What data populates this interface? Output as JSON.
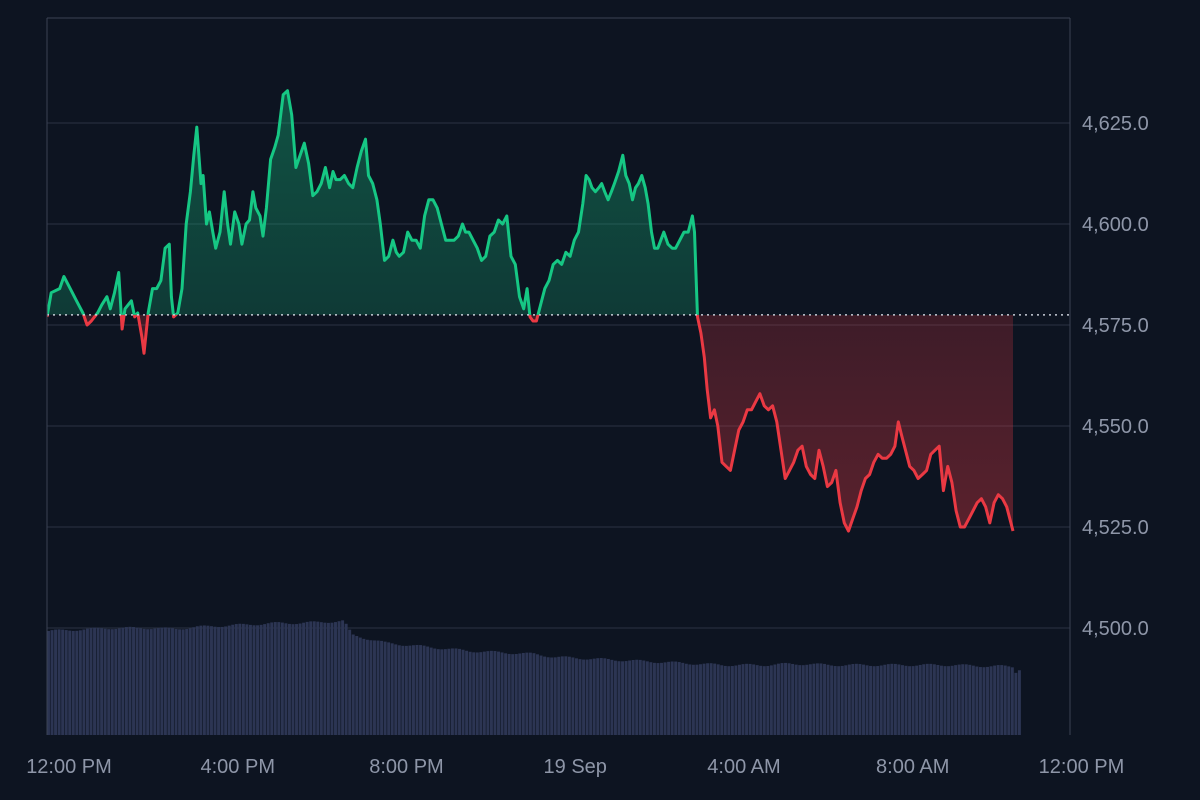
{
  "colors": {
    "background": "#0d1421",
    "grid": "#2a3242",
    "up": "#16c784",
    "down": "#ea3943",
    "baseline": "#c7ccd6",
    "volume": "#2c3553",
    "axis_text": "#8e96a8"
  },
  "chart_data": {
    "type": "area",
    "title": "",
    "xlabel": "",
    "ylabel": "",
    "baseline_value": 4577.5,
    "ylim": [
      4473.5,
      4651
    ],
    "y_ticks": [
      4500,
      4525,
      4550,
      4575,
      4600,
      4625
    ],
    "y_tick_labels": [
      "4,500.0",
      "4,525.0",
      "4,550.0",
      "4,575.0",
      "4,600.0",
      "4,625.0"
    ],
    "x_ticks": [
      {
        "h": 0,
        "label": "12:00 PM"
      },
      {
        "h": 4,
        "label": "4:00 PM"
      },
      {
        "h": 8,
        "label": "8:00 PM"
      },
      {
        "h": 12,
        "label": "19 Sep"
      },
      {
        "h": 16,
        "label": "4:00 AM"
      },
      {
        "h": 20,
        "label": "8:00 AM"
      },
      {
        "h": 24,
        "label": "12:00 PM"
      }
    ],
    "x_range_hours": [
      0,
      24.25
    ],
    "grid": true,
    "series": [
      {
        "type": "price",
        "points": [
          [
            0.0,
            4577
          ],
          [
            0.1,
            4583
          ],
          [
            0.3,
            4584
          ],
          [
            0.4,
            4587
          ],
          [
            0.55,
            4584
          ],
          [
            0.7,
            4581
          ],
          [
            0.85,
            4578
          ],
          [
            0.95,
            4575
          ],
          [
            1.05,
            4576
          ],
          [
            1.2,
            4578
          ],
          [
            1.3,
            4580
          ],
          [
            1.42,
            4582
          ],
          [
            1.5,
            4579
          ],
          [
            1.6,
            4583
          ],
          [
            1.7,
            4588
          ],
          [
            1.78,
            4574
          ],
          [
            1.85,
            4579
          ],
          [
            2.0,
            4581
          ],
          [
            2.08,
            4577
          ],
          [
            2.15,
            4578
          ],
          [
            2.25,
            4572
          ],
          [
            2.3,
            4568
          ],
          [
            2.4,
            4578
          ],
          [
            2.5,
            4584
          ],
          [
            2.6,
            4584
          ],
          [
            2.7,
            4586
          ],
          [
            2.8,
            4594
          ],
          [
            2.9,
            4595
          ],
          [
            2.95,
            4582
          ],
          [
            3.0,
            4577
          ],
          [
            3.1,
            4578
          ],
          [
            3.2,
            4584
          ],
          [
            3.3,
            4600
          ],
          [
            3.4,
            4608
          ],
          [
            3.48,
            4617
          ],
          [
            3.55,
            4624
          ],
          [
            3.65,
            4610
          ],
          [
            3.7,
            4612
          ],
          [
            3.78,
            4600
          ],
          [
            3.85,
            4603
          ],
          [
            3.93,
            4598
          ],
          [
            4.0,
            4594
          ],
          [
            4.1,
            4598
          ],
          [
            4.2,
            4608
          ],
          [
            4.28,
            4600
          ],
          [
            4.35,
            4595
          ],
          [
            4.45,
            4603
          ],
          [
            4.55,
            4600
          ],
          [
            4.62,
            4595
          ],
          [
            4.72,
            4600
          ],
          [
            4.8,
            4601
          ],
          [
            4.88,
            4608
          ],
          [
            4.95,
            4604
          ],
          [
            5.05,
            4602
          ],
          [
            5.12,
            4597
          ],
          [
            5.2,
            4604
          ],
          [
            5.3,
            4616
          ],
          [
            5.4,
            4619
          ],
          [
            5.48,
            4622
          ],
          [
            5.6,
            4632
          ],
          [
            5.7,
            4633
          ],
          [
            5.8,
            4627
          ],
          [
            5.9,
            4614
          ],
          [
            6.0,
            4617
          ],
          [
            6.1,
            4620
          ],
          [
            6.2,
            4615
          ],
          [
            6.3,
            4607
          ],
          [
            6.4,
            4608
          ],
          [
            6.5,
            4610
          ],
          [
            6.6,
            4614
          ],
          [
            6.7,
            4609
          ],
          [
            6.78,
            4613
          ],
          [
            6.85,
            4611
          ],
          [
            6.95,
            4611
          ],
          [
            7.05,
            4612
          ],
          [
            7.15,
            4610
          ],
          [
            7.25,
            4609
          ],
          [
            7.35,
            4614
          ],
          [
            7.45,
            4618
          ],
          [
            7.55,
            4621
          ],
          [
            7.62,
            4612
          ],
          [
            7.72,
            4610
          ],
          [
            7.82,
            4606
          ],
          [
            7.9,
            4600
          ],
          [
            8.0,
            4591
          ],
          [
            8.1,
            4592
          ],
          [
            8.2,
            4596
          ],
          [
            8.28,
            4593
          ],
          [
            8.35,
            4592
          ],
          [
            8.45,
            4593
          ],
          [
            8.55,
            4598
          ],
          [
            8.65,
            4596
          ],
          [
            8.75,
            4596
          ],
          [
            8.85,
            4594
          ],
          [
            8.95,
            4602
          ],
          [
            9.05,
            4606
          ],
          [
            9.15,
            4606
          ],
          [
            9.25,
            4604
          ],
          [
            9.35,
            4600
          ],
          [
            9.45,
            4596
          ],
          [
            9.55,
            4596
          ],
          [
            9.65,
            4596
          ],
          [
            9.75,
            4597
          ],
          [
            9.85,
            4600
          ],
          [
            9.92,
            4598
          ],
          [
            10.0,
            4598
          ],
          [
            10.1,
            4596
          ],
          [
            10.2,
            4594
          ],
          [
            10.3,
            4591
          ],
          [
            10.4,
            4592
          ],
          [
            10.5,
            4597
          ],
          [
            10.6,
            4598
          ],
          [
            10.7,
            4601
          ],
          [
            10.8,
            4600
          ],
          [
            10.9,
            4602
          ],
          [
            11.0,
            4592
          ],
          [
            11.1,
            4590
          ],
          [
            11.2,
            4582
          ],
          [
            11.3,
            4579
          ],
          [
            11.38,
            4584
          ],
          [
            11.45,
            4577
          ],
          [
            11.52,
            4576
          ],
          [
            11.6,
            4576
          ],
          [
            11.7,
            4580
          ],
          [
            11.8,
            4584
          ],
          [
            11.9,
            4586
          ],
          [
            12.0,
            4590
          ],
          [
            12.1,
            4591
          ],
          [
            12.2,
            4590
          ],
          [
            12.3,
            4593
          ],
          [
            12.4,
            4592
          ],
          [
            12.5,
            4596
          ],
          [
            12.6,
            4598
          ],
          [
            12.7,
            4605
          ],
          [
            12.78,
            4612
          ],
          [
            12.85,
            4611
          ],
          [
            12.92,
            4609
          ],
          [
            13.0,
            4608
          ],
          [
            13.08,
            4609
          ],
          [
            13.15,
            4610
          ],
          [
            13.22,
            4608
          ],
          [
            13.3,
            4606
          ],
          [
            13.38,
            4608
          ],
          [
            13.45,
            4610
          ],
          [
            13.55,
            4613
          ],
          [
            13.65,
            4617
          ],
          [
            13.72,
            4612
          ],
          [
            13.8,
            4610
          ],
          [
            13.88,
            4606
          ],
          [
            13.95,
            4609
          ],
          [
            14.02,
            4610
          ],
          [
            14.1,
            4612
          ],
          [
            14.18,
            4609
          ],
          [
            14.25,
            4605
          ],
          [
            14.33,
            4598
          ],
          [
            14.4,
            4594
          ],
          [
            14.48,
            4594
          ],
          [
            14.55,
            4596
          ],
          [
            14.62,
            4598
          ],
          [
            14.72,
            4595
          ],
          [
            14.82,
            4594
          ],
          [
            14.9,
            4594
          ],
          [
            15.0,
            4596
          ],
          [
            15.1,
            4598
          ],
          [
            15.2,
            4598
          ],
          [
            15.3,
            4602
          ],
          [
            15.35,
            4598
          ],
          [
            15.42,
            4577
          ],
          [
            15.5,
            4573
          ],
          [
            15.58,
            4567
          ],
          [
            15.65,
            4559
          ],
          [
            15.73,
            4552
          ],
          [
            15.82,
            4554
          ],
          [
            15.9,
            4550
          ],
          [
            16.0,
            4541
          ],
          [
            16.1,
            4540
          ],
          [
            16.2,
            4539
          ],
          [
            16.3,
            4544
          ],
          [
            16.4,
            4549
          ],
          [
            16.5,
            4551
          ],
          [
            16.6,
            4554
          ],
          [
            16.7,
            4554
          ],
          [
            16.8,
            4556
          ],
          [
            16.9,
            4558
          ],
          [
            17.0,
            4555
          ],
          [
            17.1,
            4554
          ],
          [
            17.2,
            4555
          ],
          [
            17.3,
            4551
          ],
          [
            17.4,
            4544
          ],
          [
            17.5,
            4537
          ],
          [
            17.6,
            4539
          ],
          [
            17.7,
            4541
          ],
          [
            17.8,
            4544
          ],
          [
            17.9,
            4545
          ],
          [
            18.0,
            4540
          ],
          [
            18.1,
            4538
          ],
          [
            18.2,
            4537
          ],
          [
            18.3,
            4544
          ],
          [
            18.4,
            4540
          ],
          [
            18.5,
            4535
          ],
          [
            18.6,
            4536
          ],
          [
            18.7,
            4539
          ],
          [
            18.8,
            4531
          ],
          [
            18.9,
            4526
          ],
          [
            19.0,
            4524
          ],
          [
            19.1,
            4527
          ],
          [
            19.2,
            4530
          ],
          [
            19.3,
            4534
          ],
          [
            19.4,
            4537
          ],
          [
            19.5,
            4538
          ],
          [
            19.6,
            4541
          ],
          [
            19.7,
            4543
          ],
          [
            19.8,
            4542
          ],
          [
            19.9,
            4542
          ],
          [
            20.0,
            4543
          ],
          [
            20.1,
            4545
          ],
          [
            20.18,
            4551
          ],
          [
            20.25,
            4548
          ],
          [
            20.35,
            4544
          ],
          [
            20.45,
            4540
          ],
          [
            20.55,
            4539
          ],
          [
            20.65,
            4537
          ],
          [
            20.75,
            4538
          ],
          [
            20.85,
            4539
          ],
          [
            20.95,
            4543
          ],
          [
            21.05,
            4544
          ],
          [
            21.15,
            4545
          ],
          [
            21.25,
            4534
          ],
          [
            21.35,
            4540
          ],
          [
            21.45,
            4536
          ],
          [
            21.55,
            4529
          ],
          [
            21.65,
            4525
          ],
          [
            21.75,
            4525
          ],
          [
            21.85,
            4527
          ],
          [
            21.95,
            4529
          ],
          [
            22.05,
            4531
          ],
          [
            22.15,
            4532
          ],
          [
            22.25,
            4530
          ],
          [
            22.35,
            4526
          ],
          [
            22.45,
            4531
          ],
          [
            22.55,
            4533
          ],
          [
            22.65,
            4532
          ],
          [
            22.75,
            4530
          ],
          [
            22.85,
            4526
          ],
          [
            22.9,
            4524
          ]
        ]
      },
      {
        "type": "volume",
        "points": [
          [
            0.0,
            0.52
          ],
          [
            0.5,
            0.525
          ],
          [
            1.0,
            0.53
          ],
          [
            1.5,
            0.535
          ],
          [
            2.0,
            0.535
          ],
          [
            2.5,
            0.535
          ],
          [
            3.0,
            0.53
          ],
          [
            3.5,
            0.54
          ],
          [
            4.0,
            0.545
          ],
          [
            4.5,
            0.55
          ],
          [
            5.0,
            0.555
          ],
          [
            5.5,
            0.56
          ],
          [
            6.0,
            0.56
          ],
          [
            6.5,
            0.565
          ],
          [
            7.0,
            0.57
          ],
          [
            7.2,
            0.5
          ],
          [
            7.6,
            0.48
          ],
          [
            8.0,
            0.46
          ],
          [
            8.5,
            0.45
          ],
          [
            9.0,
            0.44
          ],
          [
            9.5,
            0.43
          ],
          [
            10.0,
            0.42
          ],
          [
            10.5,
            0.415
          ],
          [
            11.0,
            0.41
          ],
          [
            11.5,
            0.405
          ],
          [
            12.0,
            0.39
          ],
          [
            12.5,
            0.385
          ],
          [
            13.0,
            0.38
          ],
          [
            13.5,
            0.375
          ],
          [
            14.0,
            0.37
          ],
          [
            14.5,
            0.365
          ],
          [
            15.0,
            0.36
          ],
          [
            15.5,
            0.355
          ],
          [
            16.0,
            0.35
          ],
          [
            16.5,
            0.35
          ],
          [
            17.0,
            0.35
          ],
          [
            17.5,
            0.355
          ],
          [
            18.0,
            0.355
          ],
          [
            18.5,
            0.35
          ],
          [
            19.0,
            0.35
          ],
          [
            19.5,
            0.35
          ],
          [
            20.0,
            0.35
          ],
          [
            20.5,
            0.35
          ],
          [
            21.0,
            0.35
          ],
          [
            21.5,
            0.35
          ],
          [
            22.0,
            0.345
          ],
          [
            22.5,
            0.345
          ],
          [
            22.85,
            0.34
          ],
          [
            22.95,
            0.31
          ],
          [
            23.05,
            0.34
          ]
        ]
      }
    ]
  }
}
